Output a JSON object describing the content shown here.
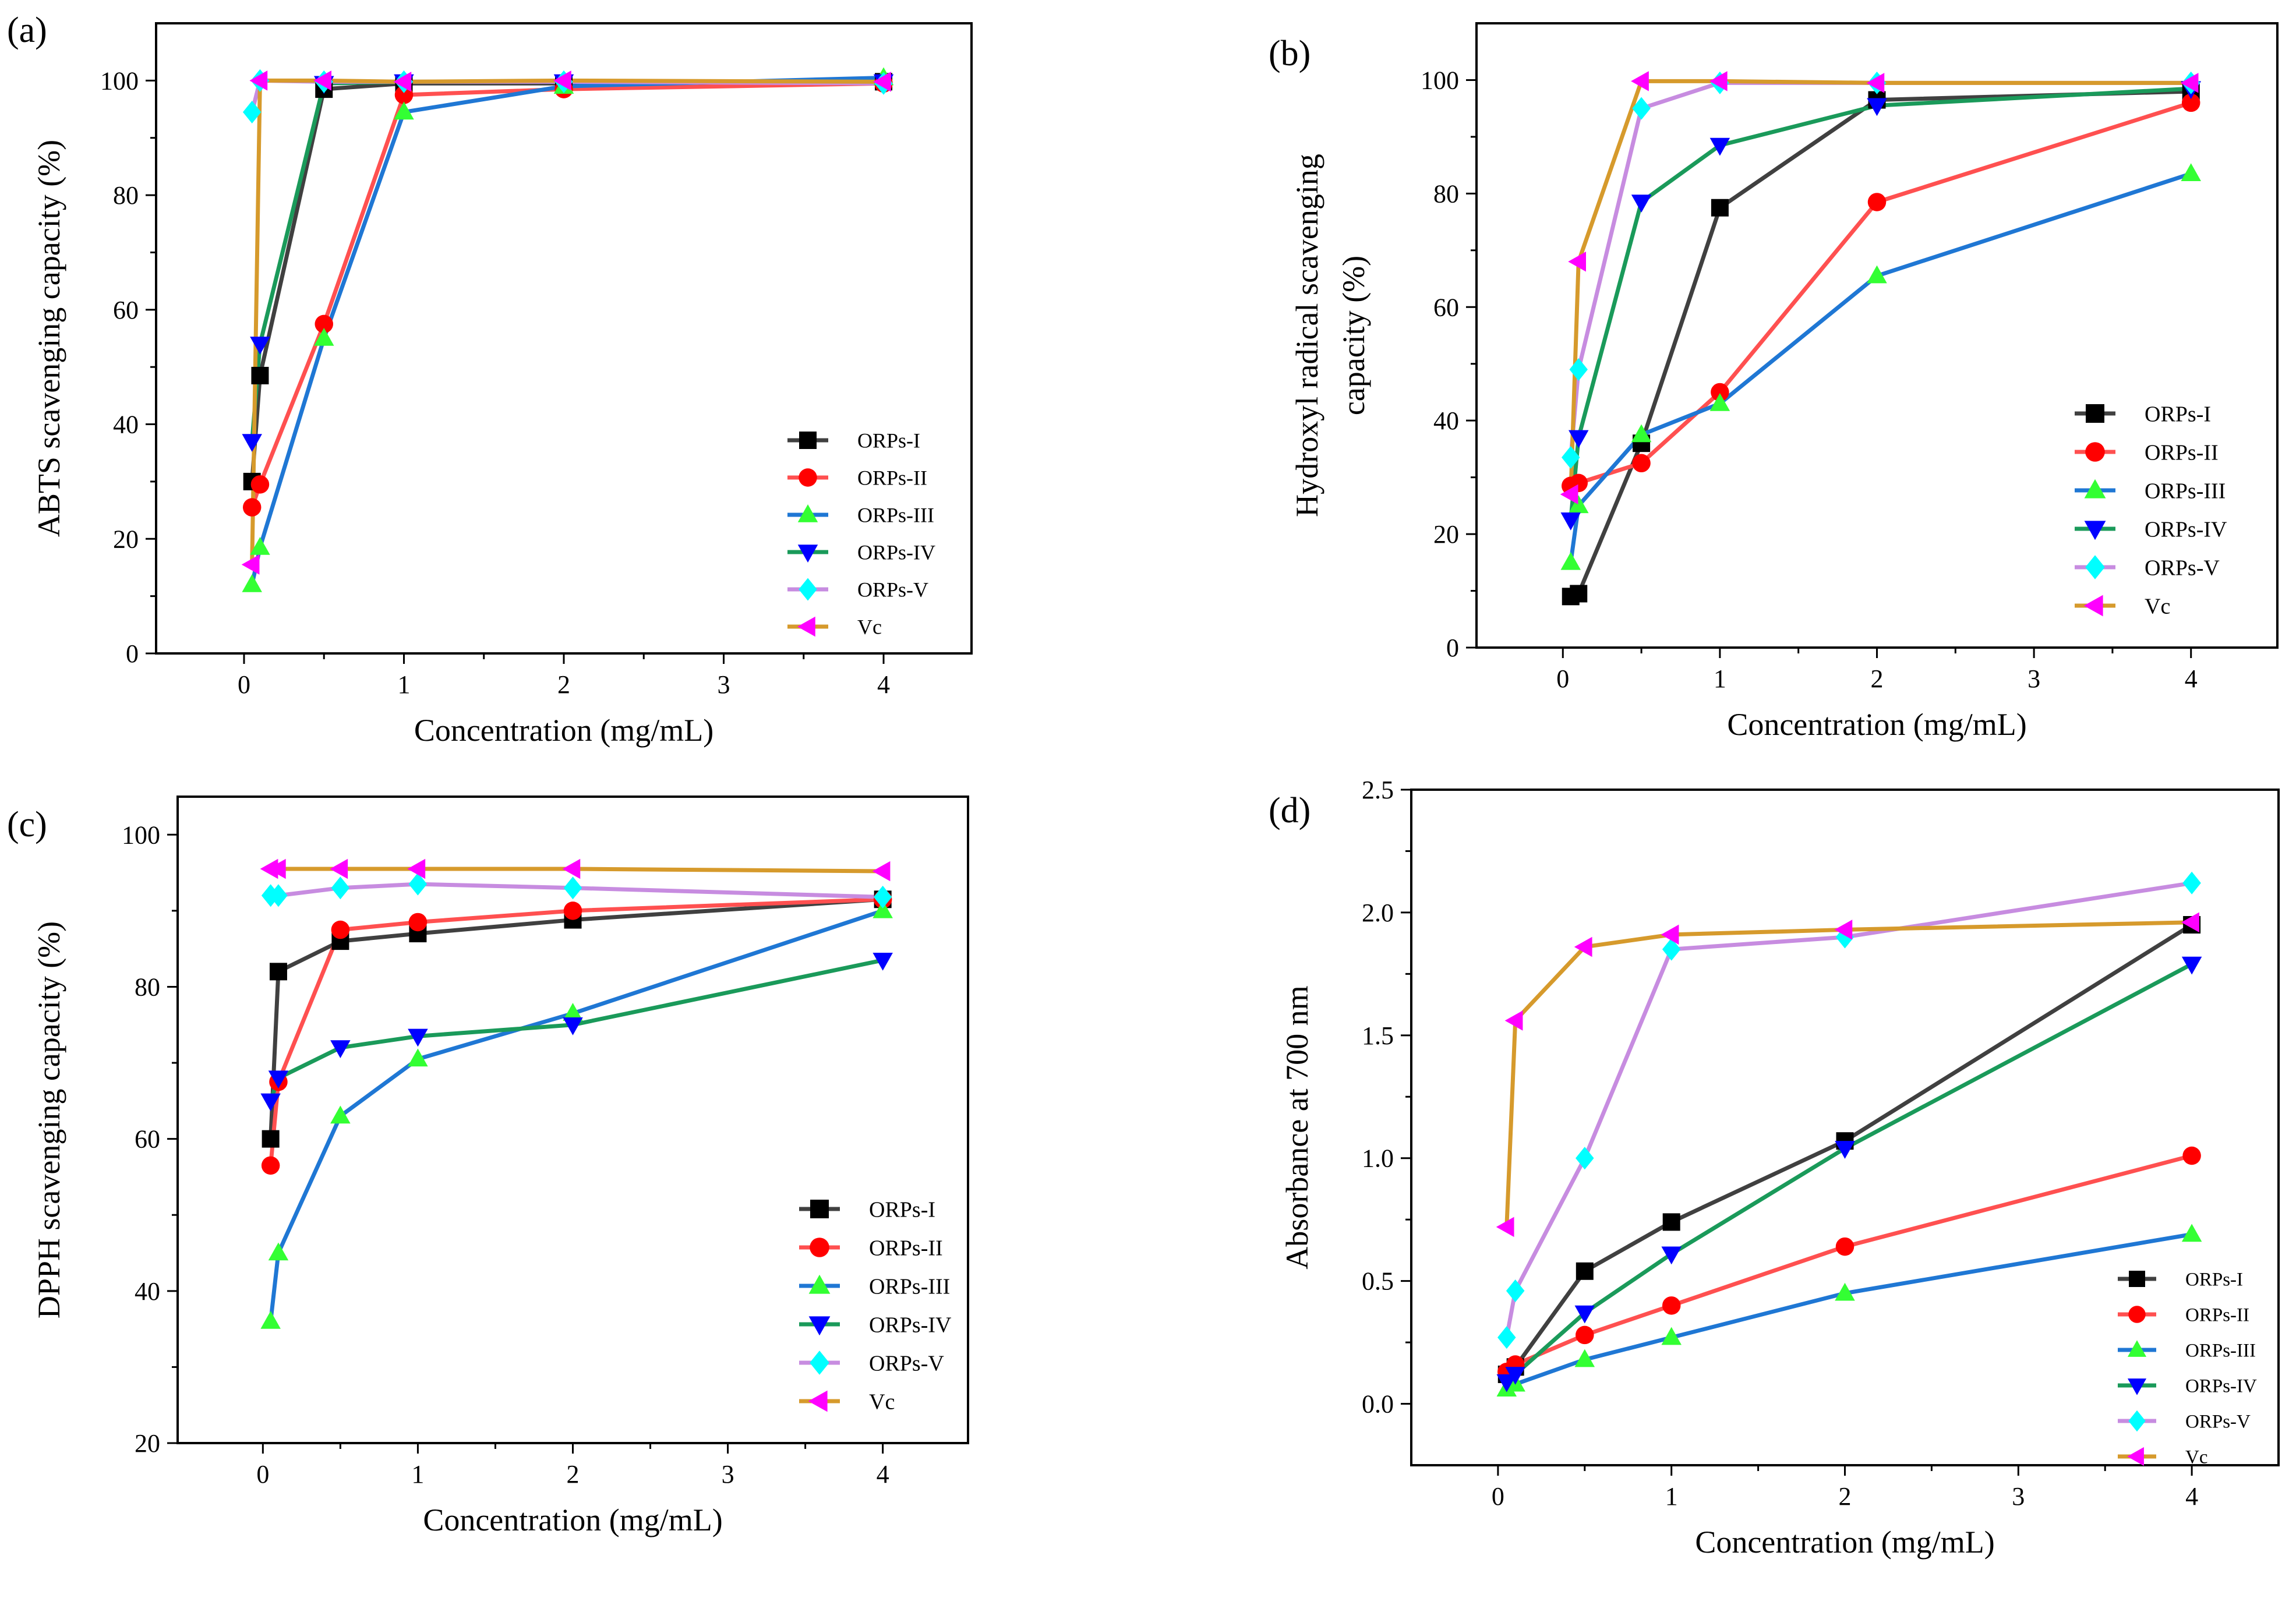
{
  "figure": {
    "panel_labels": [
      "(a)",
      "(b)",
      "(c)",
      "(d)"
    ]
  },
  "series_styles": {
    "ORPs-I": {
      "line": "#404040",
      "marker": "square",
      "fill": "#000000"
    },
    "ORPs-II": {
      "line": "#ff5050",
      "marker": "circle",
      "fill": "#ff0000"
    },
    "ORPs-III": {
      "line": "#1f77d4",
      "marker": "triangle-up",
      "fill": "#33ff33"
    },
    "ORPs-IV": {
      "line": "#1a9a5a",
      "marker": "triangle-down",
      "fill": "#0000ff"
    },
    "ORPs-V": {
      "line": "#c78ce0",
      "marker": "diamond",
      "fill": "#00ffff"
    },
    "Vc": {
      "line": "#d69a2c",
      "marker": "triangle-left",
      "fill": "#ff00ff"
    }
  },
  "chart_data": [
    {
      "panel": "(a)",
      "type": "line",
      "title": "",
      "xlabel": "Concentration (mg/mL)",
      "ylabel": "ABTS scavenging capacity (%)",
      "ylabel_lines": [
        "ABTS scavenging capacity (%)"
      ],
      "xlim": [
        -0.55,
        4.55
      ],
      "ylim": [
        0,
        110
      ],
      "xticks": [
        0,
        1,
        2,
        3,
        4
      ],
      "yticks": [
        0,
        20,
        40,
        60,
        80,
        100
      ],
      "legend_position": "center-right",
      "x": [
        0.05,
        0.1,
        0.5,
        1,
        2,
        4
      ],
      "series": [
        {
          "name": "ORPs-I",
          "values": [
            30,
            48.5,
            98.5,
            99.5,
            99.5,
            99.8
          ]
        },
        {
          "name": "ORPs-II",
          "values": [
            25.5,
            29.5,
            57.5,
            97.5,
            98.5,
            99.5
          ]
        },
        {
          "name": "ORPs-III",
          "values": [
            12,
            18.5,
            55,
            94.5,
            99,
            100.5
          ]
        },
        {
          "name": "ORPs-IV",
          "values": [
            37,
            54,
            99.5,
            99.8,
            99.8,
            99.8
          ]
        },
        {
          "name": "ORPs-V",
          "values": [
            94.5,
            100,
            99.8,
            99.8,
            99.8,
            99.5
          ]
        },
        {
          "name": "Vc",
          "values": [
            15.5,
            100,
            100,
            99.8,
            100,
            99.8
          ]
        }
      ]
    },
    {
      "panel": "(b)",
      "type": "line",
      "title": "",
      "xlabel": "Concentration (mg/mL)",
      "ylabel": "Hydroxyl radical scavenging capacity (%)",
      "ylabel_lines": [
        "Hydroxyl radical scavenging",
        "capacity (%)"
      ],
      "xlim": [
        -0.55,
        4.55
      ],
      "ylim": [
        0,
        110
      ],
      "xticks": [
        0,
        1,
        2,
        3,
        4
      ],
      "yticks": [
        0,
        20,
        40,
        60,
        80,
        100
      ],
      "legend_position": "center-right",
      "x": [
        0.05,
        0.1,
        0.5,
        1,
        2,
        4
      ],
      "series": [
        {
          "name": "ORPs-I",
          "values": [
            9,
            9.5,
            36,
            77.5,
            96.5,
            98
          ]
        },
        {
          "name": "ORPs-II",
          "values": [
            28.5,
            29,
            32.5,
            45,
            78.5,
            96
          ]
        },
        {
          "name": "ORPs-III",
          "values": [
            15,
            25,
            37.5,
            43,
            65.5,
            83.5
          ]
        },
        {
          "name": "ORPs-IV",
          "values": [
            22.5,
            37,
            78.5,
            88.5,
            95.5,
            98.5
          ]
        },
        {
          "name": "ORPs-V",
          "values": [
            33.5,
            49,
            95,
            99.5,
            99.5,
            99.5
          ]
        },
        {
          "name": "Vc",
          "values": [
            27,
            68,
            99.8,
            99.8,
            99.5,
            99.5
          ]
        }
      ]
    },
    {
      "panel": "(c)",
      "type": "line",
      "title": "",
      "xlabel": "Concentration (mg/mL)",
      "ylabel": "DPPH scavenging capacity (%)",
      "ylabel_lines": [
        "DPPH scavenging capacity (%)"
      ],
      "xlim": [
        -0.55,
        4.55
      ],
      "ylim": [
        20,
        105
      ],
      "xticks": [
        0,
        1,
        2,
        3,
        4
      ],
      "yticks": [
        20,
        40,
        60,
        80,
        100
      ],
      "legend_position": "bottom-right",
      "x": [
        0.05,
        0.1,
        0.5,
        1,
        2,
        4
      ],
      "series": [
        {
          "name": "ORPs-I",
          "values": [
            60,
            82,
            86,
            87,
            88.8,
            91.5
          ]
        },
        {
          "name": "ORPs-II",
          "values": [
            56.5,
            67.5,
            87.5,
            88.5,
            90,
            91.5
          ]
        },
        {
          "name": "ORPs-III",
          "values": [
            36,
            45,
            63,
            70.5,
            76.5,
            90
          ]
        },
        {
          "name": "ORPs-IV",
          "values": [
            65,
            68,
            72,
            73.5,
            75,
            83.5
          ]
        },
        {
          "name": "ORPs-V",
          "values": [
            92,
            92,
            93,
            93.5,
            93,
            91.8
          ]
        },
        {
          "name": "Vc",
          "values": [
            95.5,
            95.5,
            95.5,
            95.5,
            95.5,
            95.2
          ]
        }
      ]
    },
    {
      "panel": "(d)",
      "type": "line",
      "title": "",
      "xlabel": "Concentration (mg/mL)",
      "ylabel": "Absorbance at 700 nm",
      "ylabel_lines": [
        "Absorbance at 700 nm"
      ],
      "xlim": [
        -0.5,
        4.5
      ],
      "ylim": [
        -0.25,
        2.5
      ],
      "xticks": [
        0,
        1,
        2,
        3,
        4
      ],
      "yticks": [
        0.0,
        0.5,
        1.0,
        1.5,
        2.0,
        2.5
      ],
      "ytick_labels": [
        "0.0",
        "0.5",
        "1.0",
        "1.5",
        "2.0",
        "2.5"
      ],
      "legend_position": "bottom-right",
      "x": [
        0.05,
        0.1,
        0.5,
        1,
        2,
        4
      ],
      "series": [
        {
          "name": "ORPs-I",
          "values": [
            0.12,
            0.15,
            0.54,
            0.74,
            1.07,
            1.95
          ]
        },
        {
          "name": "ORPs-II",
          "values": [
            0.13,
            0.16,
            0.28,
            0.4,
            0.64,
            1.01
          ]
        },
        {
          "name": "ORPs-III",
          "values": [
            0.06,
            0.08,
            0.18,
            0.27,
            0.45,
            0.69
          ]
        },
        {
          "name": "ORPs-IV",
          "values": [
            0.09,
            0.12,
            0.37,
            0.61,
            1.04,
            1.79
          ]
        },
        {
          "name": "ORPs-V",
          "values": [
            0.27,
            0.46,
            1.0,
            1.85,
            1.9,
            2.12
          ]
        },
        {
          "name": "Vc",
          "values": [
            0.72,
            1.56,
            1.86,
            1.91,
            1.93,
            1.96
          ]
        }
      ]
    }
  ]
}
